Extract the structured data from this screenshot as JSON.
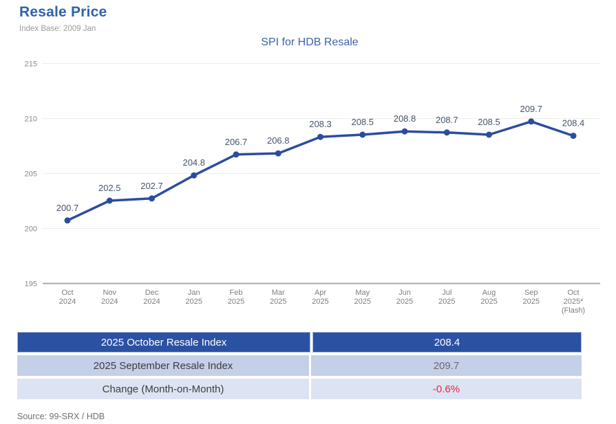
{
  "page": {
    "title": "Resale Price",
    "subtitle": "Index Base: 2009 Jan",
    "source_note": "Source: 99-SRX / HDB"
  },
  "chart_data": {
    "type": "line",
    "title": "SPI for HDB Resale",
    "categories": [
      [
        "Oct",
        "2024"
      ],
      [
        "Nov",
        "2024"
      ],
      [
        "Dec",
        "2024"
      ],
      [
        "Jan",
        "2025"
      ],
      [
        "Feb",
        "2025"
      ],
      [
        "Mar",
        "2025"
      ],
      [
        "Apr",
        "2025"
      ],
      [
        "May",
        "2025"
      ],
      [
        "Jun",
        "2025"
      ],
      [
        "Jul",
        "2025"
      ],
      [
        "Aug",
        "2025"
      ],
      [
        "Sep",
        "2025"
      ],
      [
        "Oct",
        "2025*",
        "(Flash)"
      ]
    ],
    "values": [
      200.7,
      202.5,
      202.7,
      204.8,
      206.7,
      206.8,
      208.3,
      208.5,
      208.8,
      208.7,
      208.5,
      209.7,
      208.4
    ],
    "xlabel": "",
    "ylabel": "",
    "ylim": [
      195,
      215
    ],
    "yticks": [
      195,
      200,
      205,
      210,
      215
    ],
    "grid": true,
    "legend_position": "none",
    "data_labels": true,
    "colors": {
      "line": "#2b4d9e",
      "point": "#2b4d9e",
      "data_label": "#44546a",
      "y_tick_label": "#8a8a8a",
      "x_tick_label": "#7d7d7d",
      "gridline": "#ececec",
      "axis_line": "#a8a8a8",
      "title": "#3c63ac"
    }
  },
  "summary_table": {
    "rows": [
      {
        "label": "2025 October Resale Index",
        "value": "208.4"
      },
      {
        "label": "2025 September Resale Index",
        "value": "209.7"
      },
      {
        "label": "Change (Month-on-Month)",
        "value": "-0.6%"
      }
    ],
    "colors": {
      "header_bg": "#2b51a3",
      "header_text": "#ffffff",
      "row2_bg": "#c4cfe8",
      "row3_bg": "#dce3f3",
      "label_text": "#3d3d3d",
      "muted_value": "#6a6a6a",
      "negative_value": "#e6273a"
    }
  }
}
